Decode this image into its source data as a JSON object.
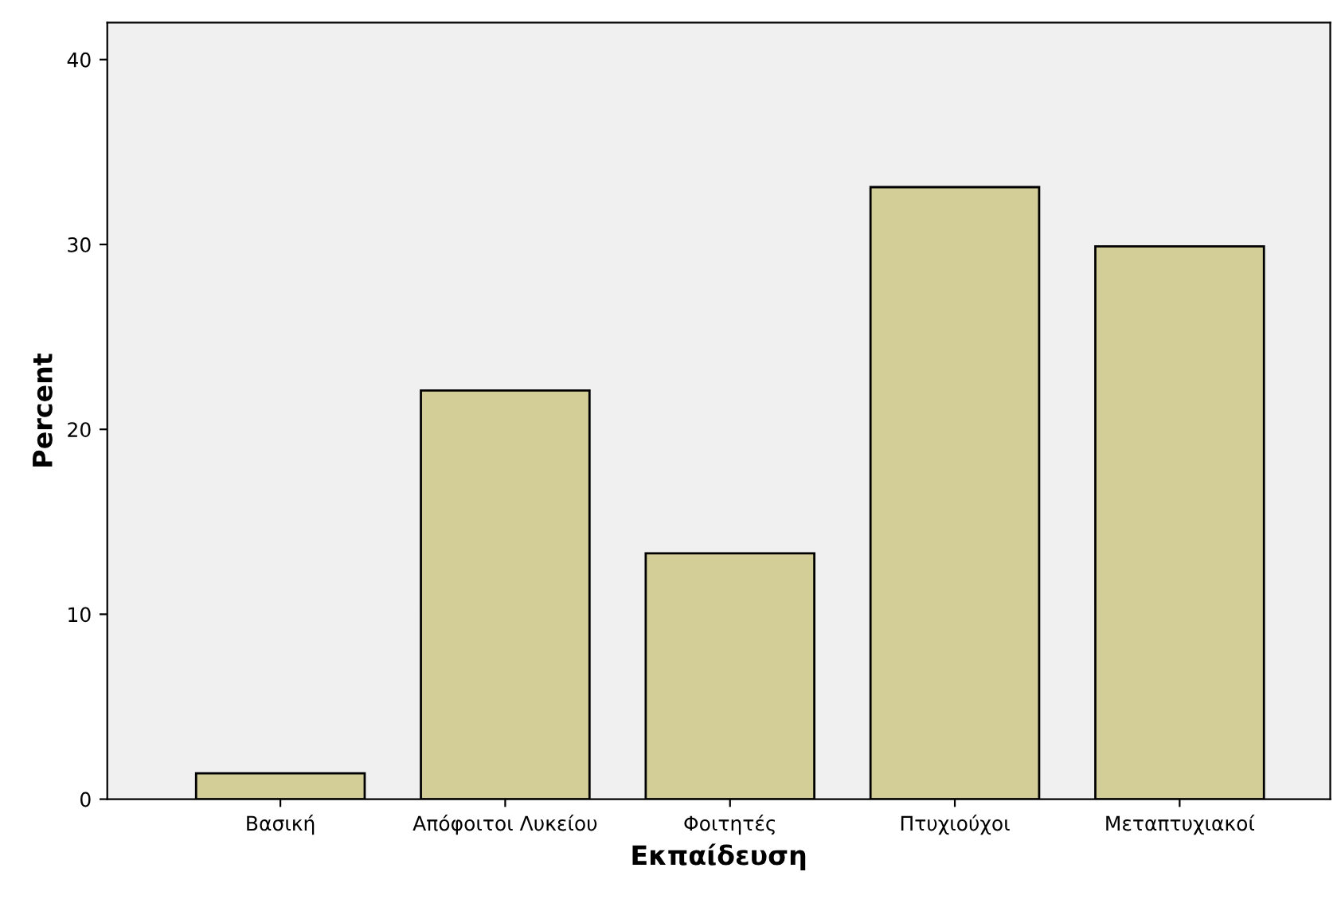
{
  "chart_data": {
    "type": "bar",
    "xlabel": "Εκπαίδευση",
    "ylabel": "Percent",
    "categories": [
      "Βασική",
      "Απόφοιτοι Λυκείου",
      "Φοιτητές",
      "Πτυχιούχοι",
      "Μεταπτυχιακοί"
    ],
    "values": [
      1.4,
      22.1,
      13.3,
      33.1,
      29.9
    ],
    "color": "#d3ce97",
    "ylim": [
      0,
      42
    ],
    "yticks": [
      0,
      10,
      20,
      30,
      40
    ],
    "grid": false,
    "legend": false
  }
}
